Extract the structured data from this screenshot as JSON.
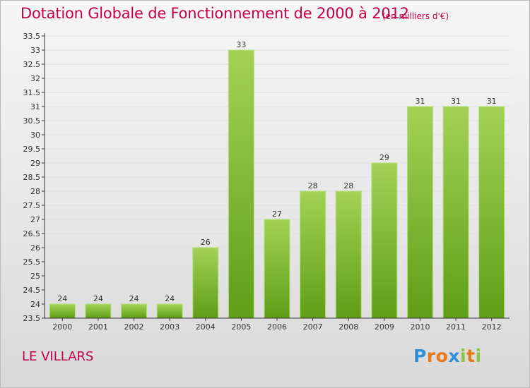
{
  "title": "Dotation Globale de Fonctionnement de 2000 à 2012",
  "subtitle": "(en milliers d'€)",
  "commune": "LE VILLARS",
  "logo": {
    "text": "Proxiti",
    "colors": [
      "#2f8fd8",
      "#e8791a",
      "#e8791a",
      "#2f8fd8",
      "#8ac43f",
      "#e8791a",
      "#8ac43f"
    ]
  },
  "colors": {
    "bar_top": "#a3d255",
    "bar_bottom": "#5f9e16",
    "title": "#c5004b",
    "axis": "#333333",
    "grid": "#e0e0e0"
  },
  "chart_data": {
    "type": "bar",
    "categories": [
      "2000",
      "2001",
      "2002",
      "2003",
      "2004",
      "2005",
      "2006",
      "2007",
      "2008",
      "2009",
      "2010",
      "2011",
      "2012"
    ],
    "values": [
      24,
      24,
      24,
      24,
      26,
      33,
      27,
      28,
      28,
      29,
      31,
      31,
      31
    ],
    "value_labels": [
      "24",
      "24",
      "24",
      "24",
      "26",
      "33",
      "27",
      "28",
      "28",
      "29",
      "31",
      "31",
      "31"
    ],
    "ylim": [
      23.5,
      33.5
    ],
    "yticks": [
      23.5,
      24,
      24.5,
      25,
      25.5,
      26,
      26.5,
      27,
      27.5,
      28,
      28.5,
      29,
      29.5,
      30,
      30.5,
      31,
      31.5,
      32,
      32.5,
      33,
      33.5
    ],
    "title": "Dotation Globale de Fonctionnement de 2000 à 2012",
    "xlabel": "",
    "ylabel": "",
    "grid": true,
    "legend": "none"
  }
}
